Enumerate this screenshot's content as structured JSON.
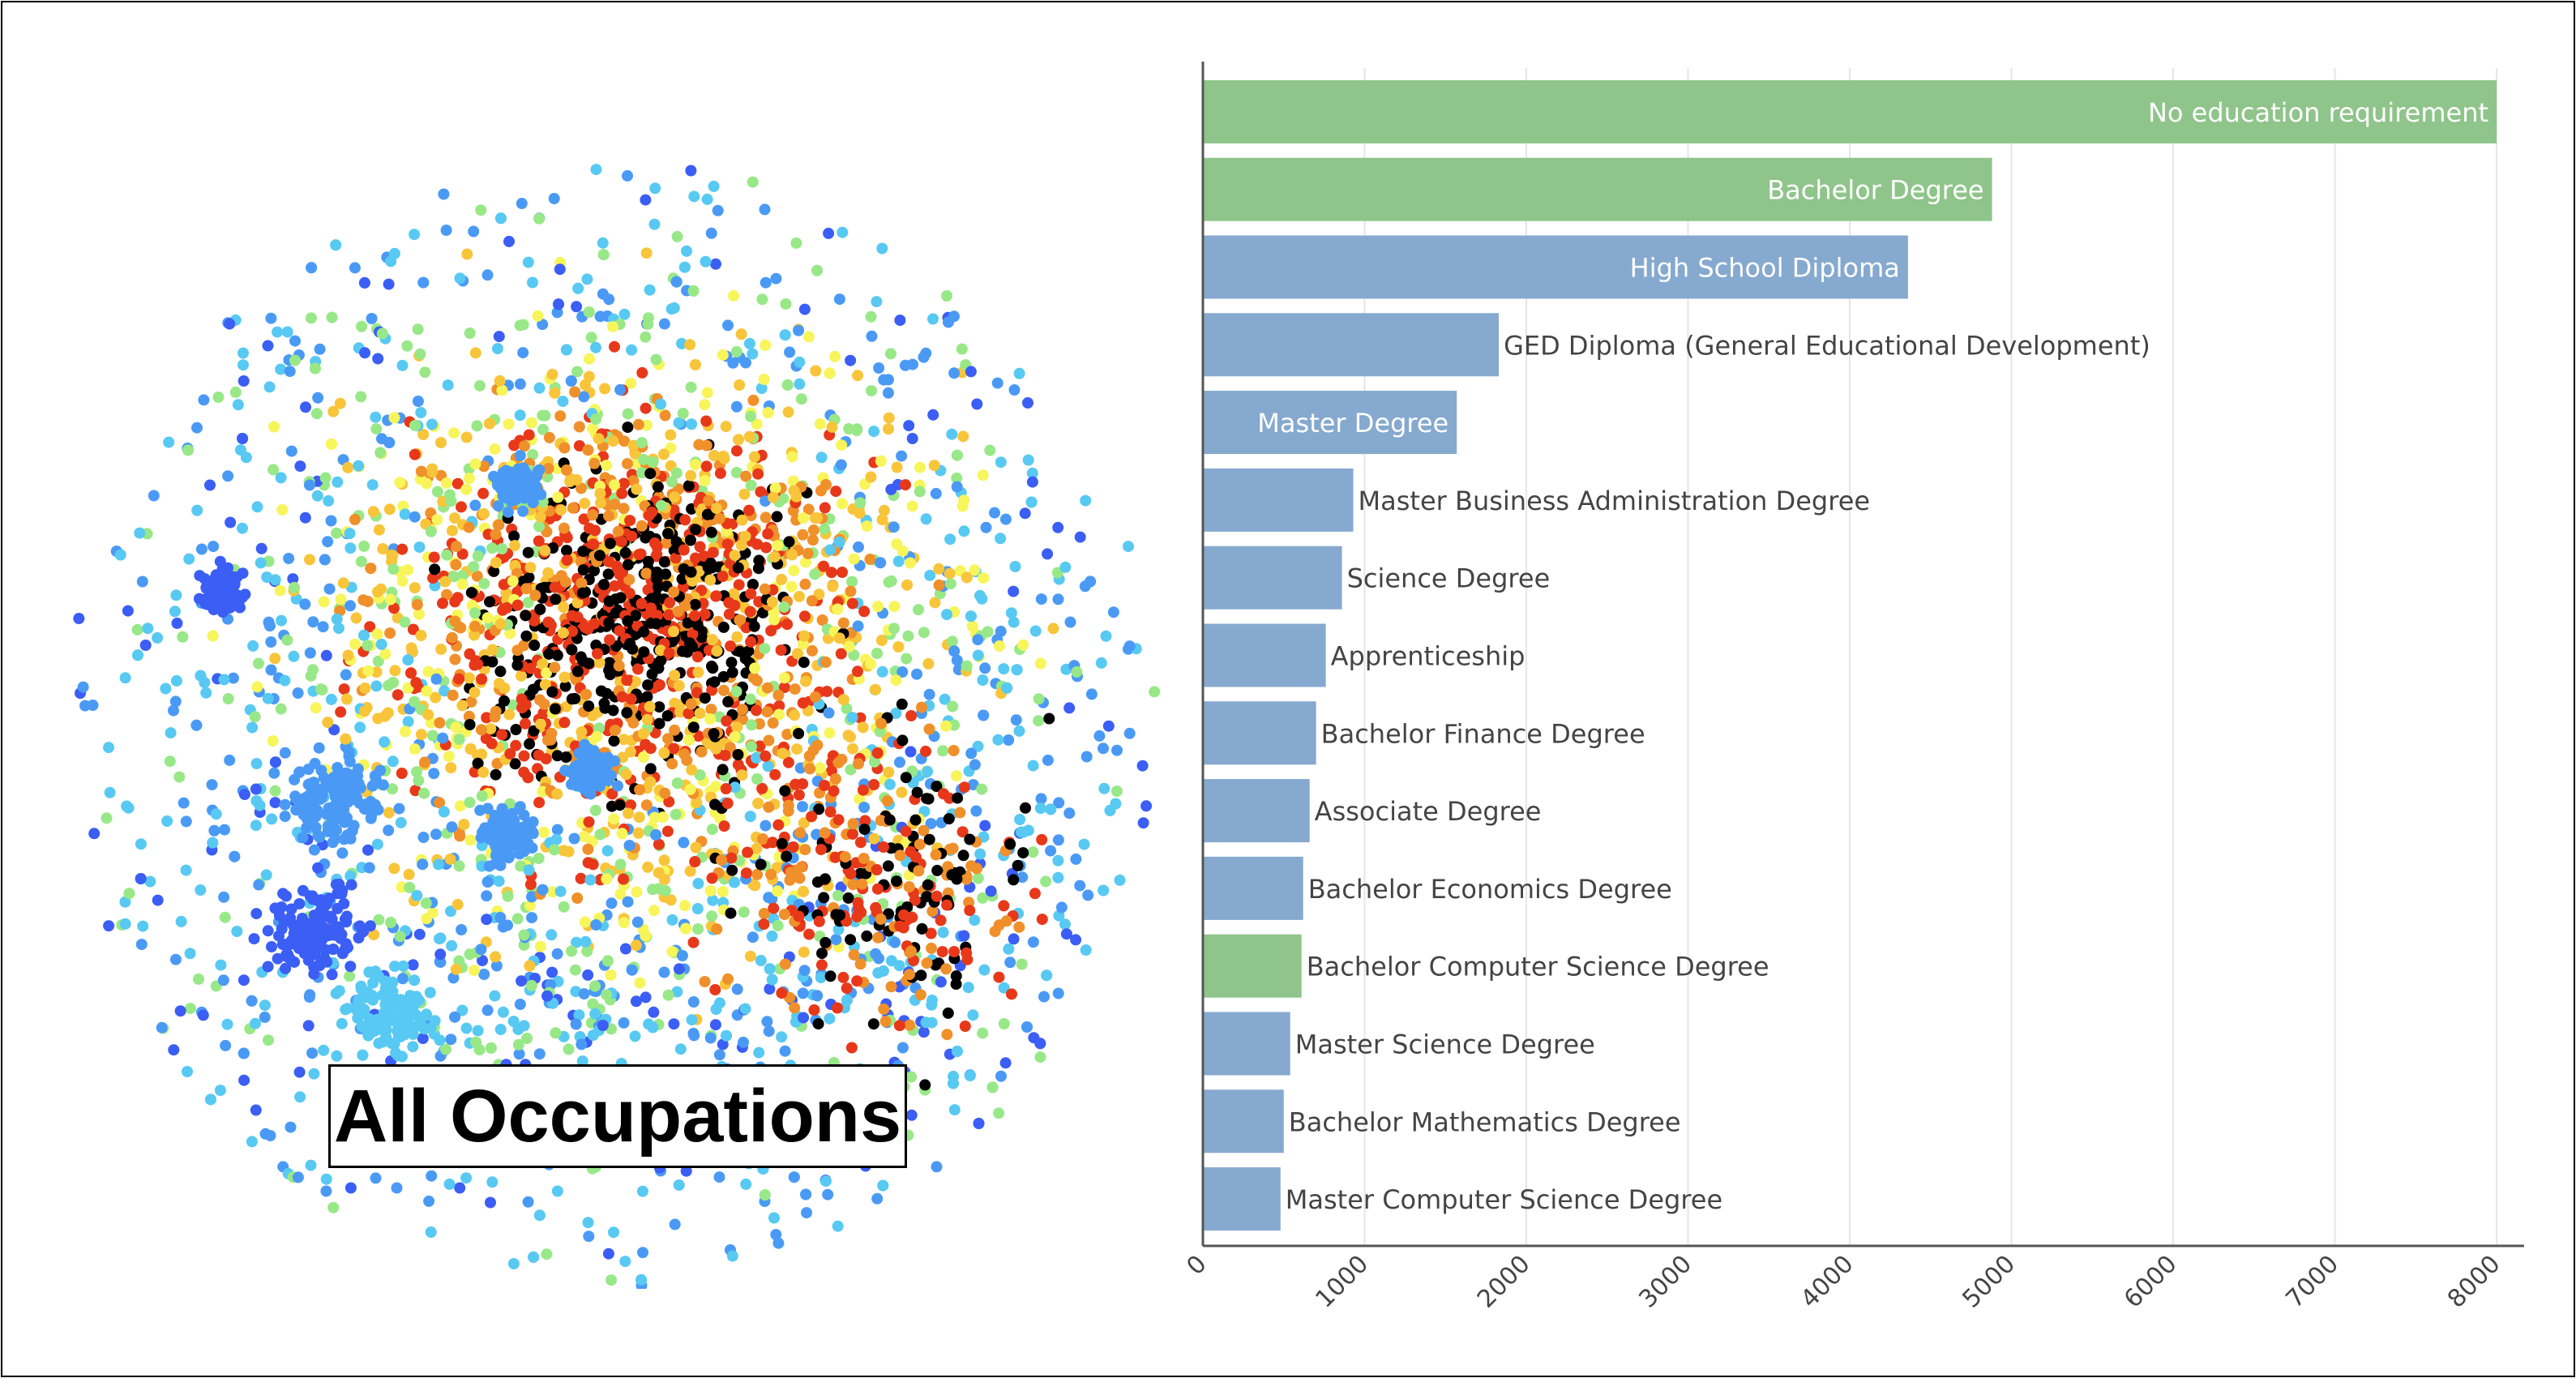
{
  "label": "All Occupations",
  "colors": {
    "bar_green": "#8fc48a",
    "bar_blue": "#86a9cf",
    "scatter_palette": [
      "#3b5ef5",
      "#4a9af5",
      "#58c9f2",
      "#98e888",
      "#f7f55a",
      "#f8c53a",
      "#f0902a",
      "#e8381a",
      "#000000"
    ]
  },
  "chart_data": {
    "type": "bar",
    "orientation": "horizontal",
    "title": "",
    "xlabel": "",
    "ylabel": "",
    "xlim": [
      0,
      8100
    ],
    "x_ticks": [
      "0",
      "1000",
      "2000",
      "3000",
      "4000",
      "5000",
      "6000",
      "7000",
      "8000"
    ],
    "grid": true,
    "bars": [
      {
        "label": "No education requirement",
        "value": 8000,
        "color": "green",
        "label_inside": true
      },
      {
        "label": "Bachelor Degree",
        "value": 4880,
        "color": "green",
        "label_inside": true
      },
      {
        "label": "High School Diploma",
        "value": 4360,
        "color": "blue",
        "label_inside": true
      },
      {
        "label": "GED Diploma (General Educational Development)",
        "value": 1830,
        "color": "blue",
        "label_inside": false
      },
      {
        "label": "Master Degree",
        "value": 1570,
        "color": "blue",
        "label_inside": true
      },
      {
        "label": "Master Business Administration Degree",
        "value": 930,
        "color": "blue",
        "label_inside": false
      },
      {
        "label": "Science Degree",
        "value": 860,
        "color": "blue",
        "label_inside": false
      },
      {
        "label": "Apprenticeship",
        "value": 760,
        "color": "blue",
        "label_inside": false
      },
      {
        "label": "Bachelor Finance Degree",
        "value": 700,
        "color": "blue",
        "label_inside": false
      },
      {
        "label": "Associate Degree",
        "value": 660,
        "color": "blue",
        "label_inside": false
      },
      {
        "label": "Bachelor Economics Degree",
        "value": 620,
        "color": "blue",
        "label_inside": false
      },
      {
        "label": "Bachelor Computer Science Degree",
        "value": 610,
        "color": "green",
        "label_inside": false
      },
      {
        "label": "Master Science Degree",
        "value": 540,
        "color": "blue",
        "label_inside": false
      },
      {
        "label": "Bachelor Mathematics Degree",
        "value": 500,
        "color": "blue",
        "label_inside": false
      },
      {
        "label": "Master Computer Science Degree",
        "value": 480,
        "color": "blue",
        "label_inside": false
      }
    ]
  }
}
